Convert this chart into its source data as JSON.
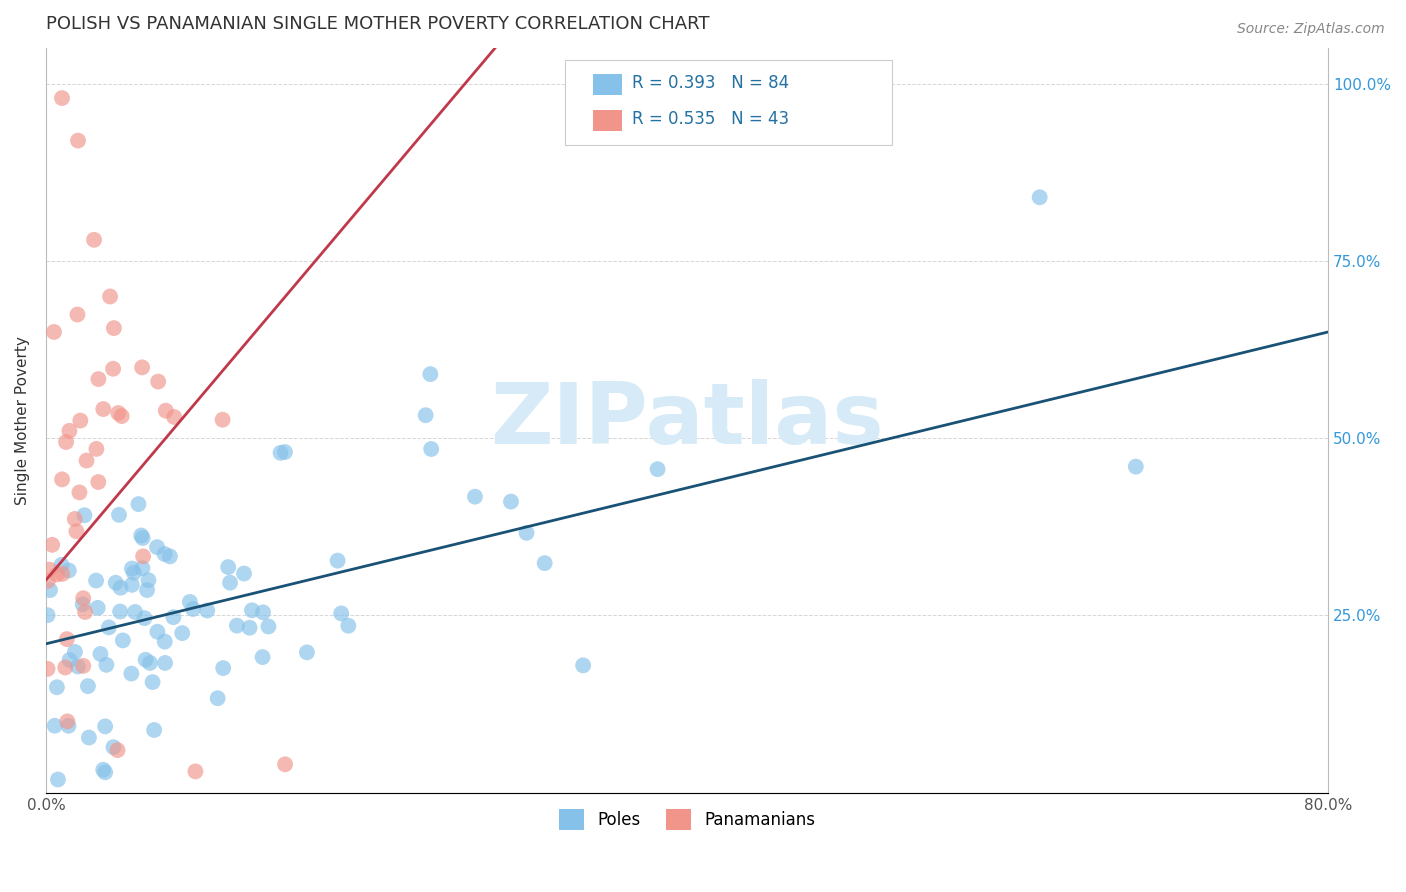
{
  "title": "POLISH VS PANAMANIAN SINGLE MOTHER POVERTY CORRELATION CHART",
  "source_text": "Source: ZipAtlas.com",
  "ylabel": "Single Mother Poverty",
  "xlim": [
    0.0,
    0.8
  ],
  "ylim": [
    0.0,
    1.05
  ],
  "yticks": [
    0.0,
    0.25,
    0.5,
    0.75,
    1.0
  ],
  "right_yticklabels": [
    "",
    "25.0%",
    "50.0%",
    "75.0%",
    "100.0%"
  ],
  "left_yticklabels": [
    "",
    "",
    "",
    "",
    ""
  ],
  "blue_R": 0.393,
  "blue_N": 84,
  "pink_R": 0.535,
  "pink_N": 43,
  "blue_color": "#85C1E9",
  "pink_color": "#F1948A",
  "blue_line_color": "#1A5276",
  "pink_line_color": "#C0394B",
  "watermark_color": "#D6EAF8",
  "legend_label_blue": "Poles",
  "legend_label_pink": "Panamanians",
  "title_fontsize": 13,
  "axis_label_fontsize": 11,
  "tick_fontsize": 11,
  "blue_line_x0": 0.0,
  "blue_line_y0": 0.21,
  "blue_line_x1": 0.8,
  "blue_line_y1": 0.65,
  "pink_line_x0": 0.0,
  "pink_line_y0": 0.3,
  "pink_line_x1": 0.28,
  "pink_line_y1": 1.05
}
